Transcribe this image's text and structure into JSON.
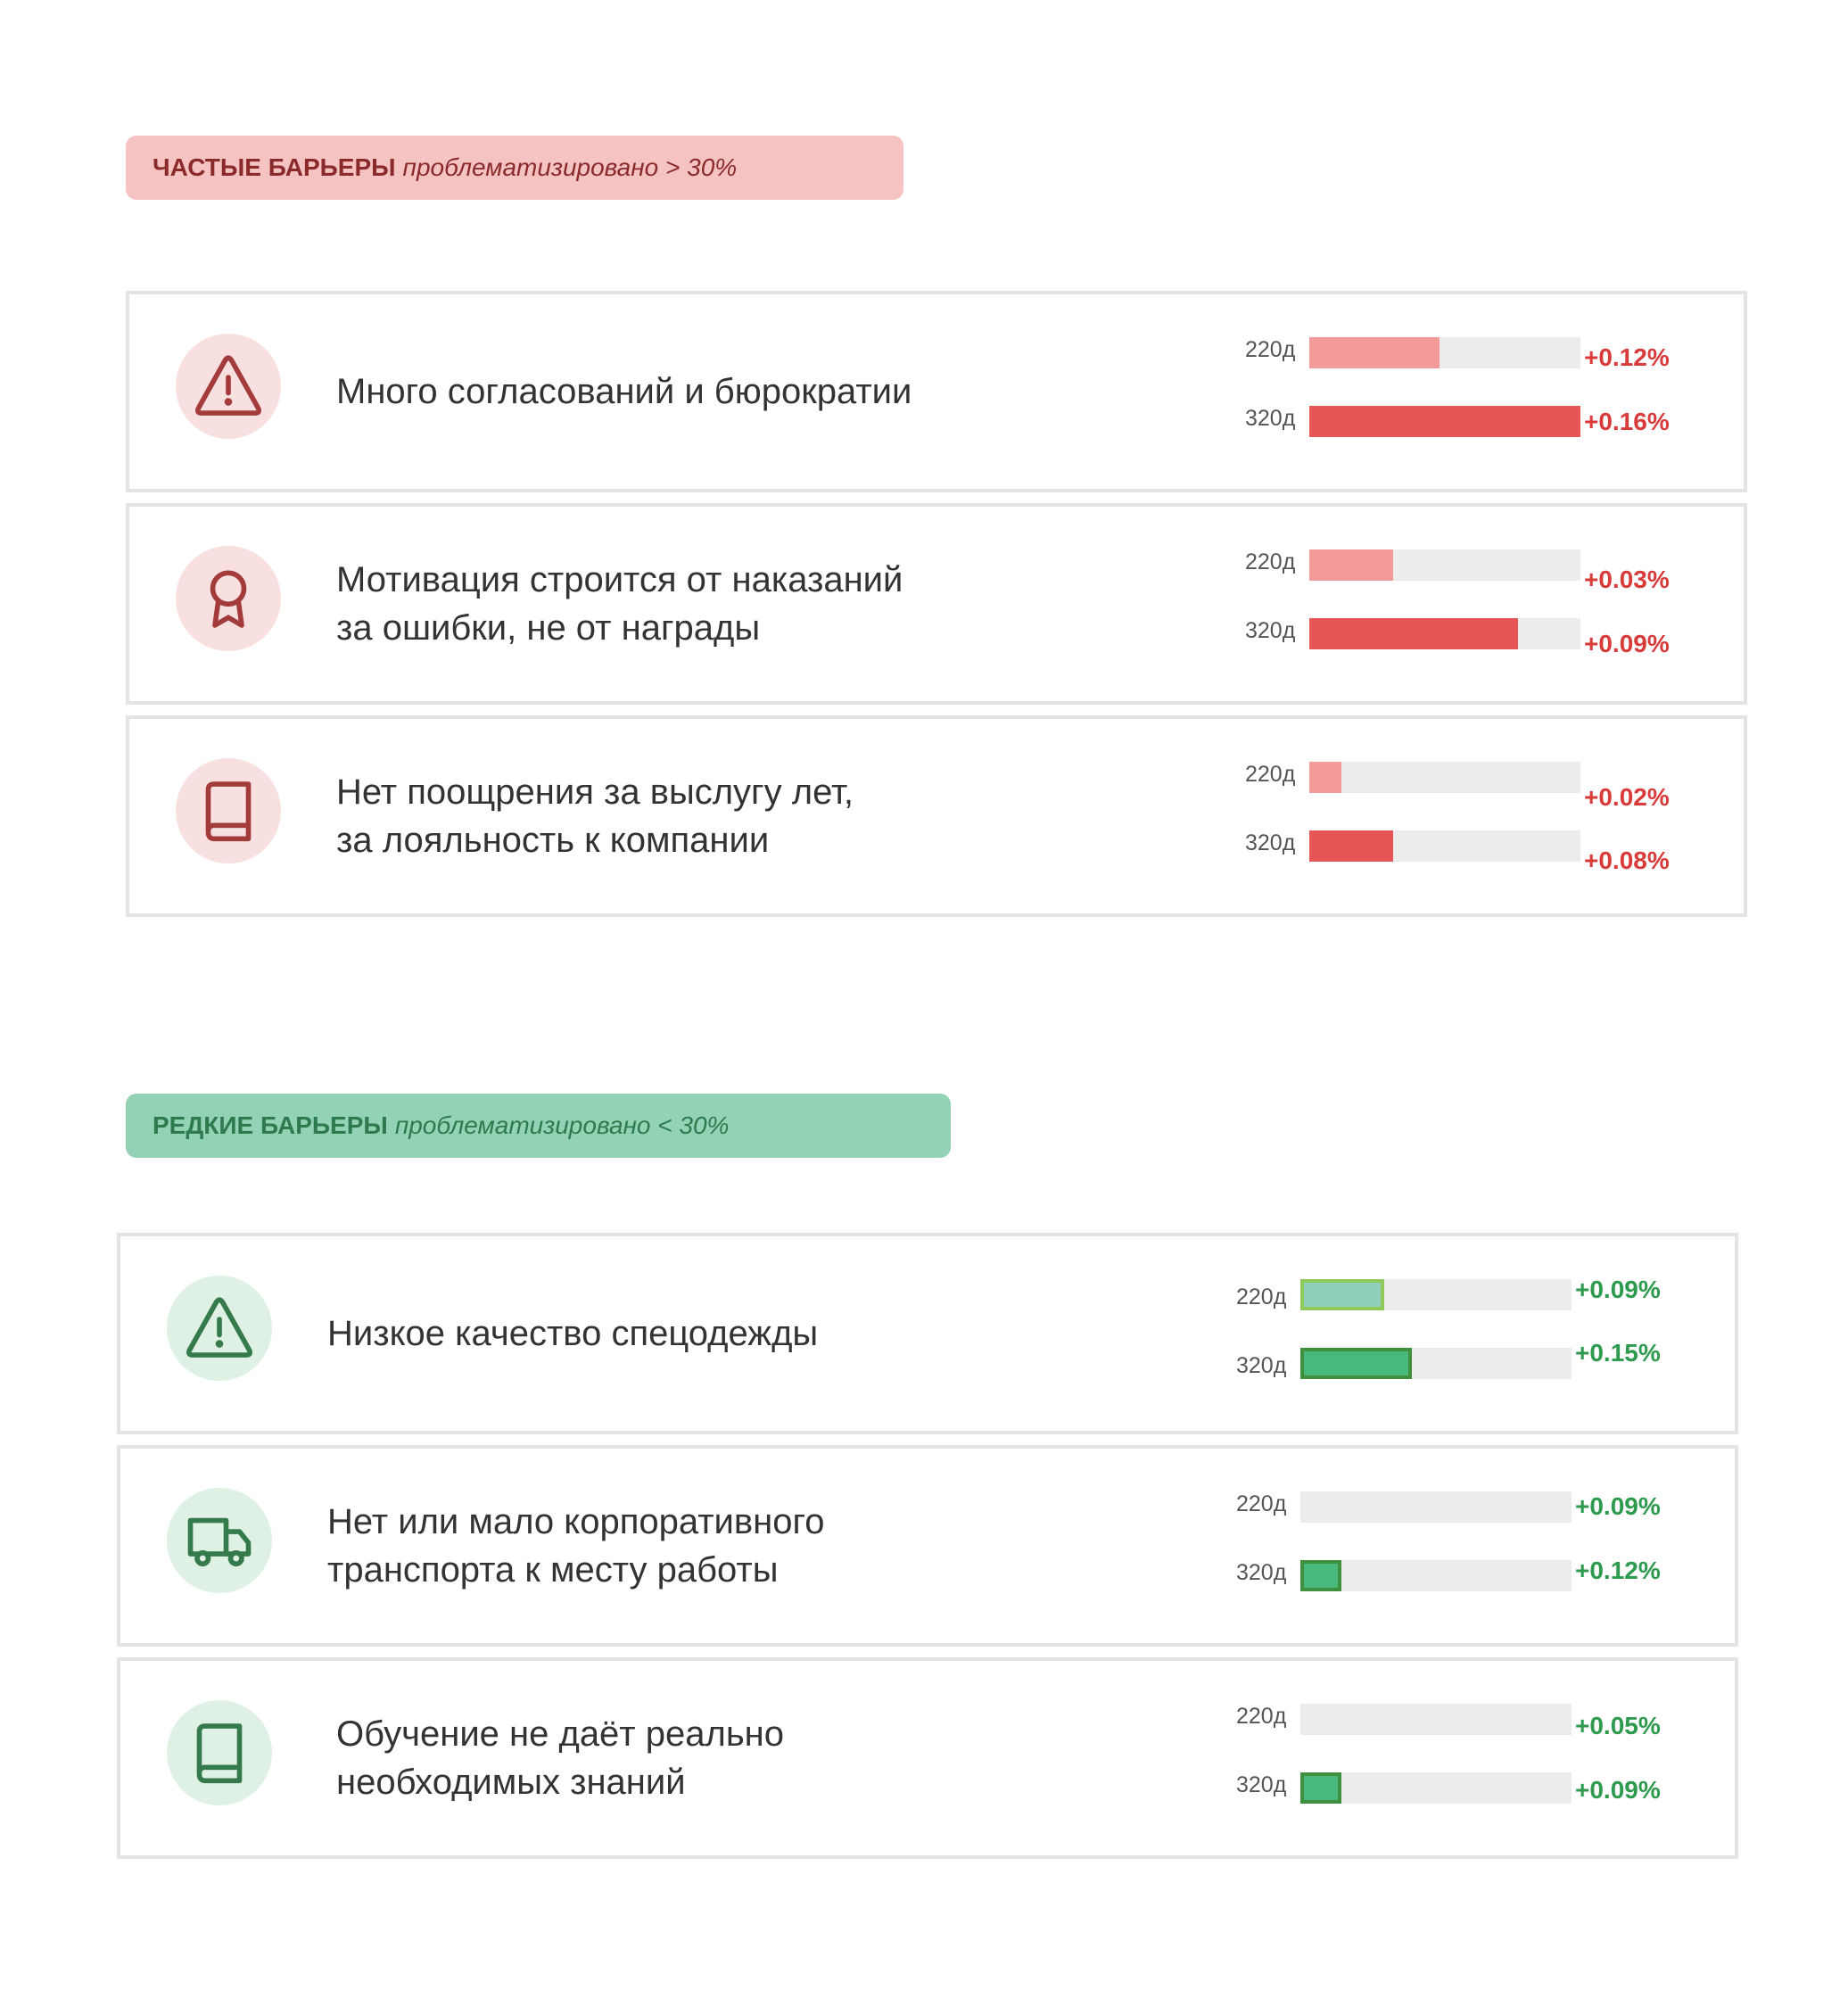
{
  "sections": [
    {
      "title": "ЧАСТЫЕ БАРЬЕРЫ",
      "note": "проблематизировано > 30%",
      "theme": "red",
      "color_label_bg": "#f6c3c3",
      "color_text": "#8b2a2a",
      "color_fill_220": "#f39a9a",
      "color_fill_320": "#e55656",
      "color_value": "#d93b3b",
      "items": [
        {
          "icon": "warning-triangle-icon",
          "lines": [
            "Много согласований и бюрократии",
            ""
          ],
          "bars": [
            {
              "label": "220д",
              "fill": 0.48,
              "value": "+0.12%"
            },
            {
              "label": "320д",
              "fill": 1.0,
              "value": "+0.16%"
            }
          ]
        },
        {
          "icon": "award-ribbon-icon",
          "lines": [
            "Мотивация строится от наказаний",
            "за ошибки, не от награды"
          ],
          "bars": [
            {
              "label": "220д",
              "fill": 0.31,
              "value": "+0.03%"
            },
            {
              "label": "320д",
              "fill": 0.77,
              "value": "+0.09%"
            }
          ]
        },
        {
          "icon": "book-icon",
          "lines": [
            "Нет поощрения за выслугу лет,",
            "за лояльность к компании"
          ],
          "bars": [
            {
              "label": "220д",
              "fill": 0.12,
              "value": "+0.02%"
            },
            {
              "label": "320д",
              "fill": 0.31,
              "value": "+0.08%"
            }
          ]
        }
      ]
    },
    {
      "title": "РЕДКИЕ БАРЬЕРЫ",
      "note": "проблематизировано < 30%",
      "theme": "green",
      "color_label_bg": "#93d2b4",
      "color_text": "#2d7a4e",
      "color_fill_220": "#8fd0bd",
      "color_fill_320": "#48b97b",
      "color_value": "#2d9a4e",
      "items": [
        {
          "icon": "warning-triangle-icon",
          "lines": [
            "Низкое качество спецодежды",
            ""
          ],
          "bars": [
            {
              "label": "220д",
              "fill": 0.31,
              "value": "+0.09%"
            },
            {
              "label": "320д",
              "fill": 0.41,
              "value": "+0.15%"
            }
          ]
        },
        {
          "icon": "truck-icon",
          "lines": [
            "Нет или мало корпоративного",
            "транспорта к месту работы"
          ],
          "bars": [
            {
              "label": "220д",
              "fill": 0.0,
              "value": "+0.09%"
            },
            {
              "label": "320д",
              "fill": 0.15,
              "value": "+0.12%"
            }
          ]
        },
        {
          "icon": "book-icon",
          "lines": [
            "Обучение не даёт реально",
            "необходимых знаний"
          ],
          "bars": [
            {
              "label": "220д",
              "fill": 0.0,
              "value": "+0.05%"
            },
            {
              "label": "320д",
              "fill": 0.15,
              "value": "+0.09%"
            }
          ]
        }
      ]
    }
  ],
  "chart_data": {
    "type": "bar",
    "orientation": "horizontal",
    "series_labels": [
      "220д",
      "320д"
    ],
    "groups": [
      {
        "section": "ЧАСТЫЕ БАРЬЕРЫ",
        "category": "Много согласований и бюрократии",
        "values": [
          "+0.12%",
          "+0.16%"
        ]
      },
      {
        "section": "ЧАСТЫЕ БАРЬЕРЫ",
        "category": "Мотивация строится от наказаний за ошибки, не от награды",
        "values": [
          "+0.03%",
          "+0.09%"
        ]
      },
      {
        "section": "ЧАСТЫЕ БАРЬЕРЫ",
        "category": "Нет поощрения за выслугу лет, за лояльность к компании",
        "values": [
          "+0.02%",
          "+0.08%"
        ]
      },
      {
        "section": "РЕДКИЕ БАРЬЕРЫ",
        "category": "Низкое качество спецодежды",
        "values": [
          "+0.09%",
          "+0.15%"
        ]
      },
      {
        "section": "РЕДКИЕ БАРЬЕРЫ",
        "category": "Нет или мало корпоративного транспорта к месту работы",
        "values": [
          "+0.09%",
          "+0.12%"
        ]
      },
      {
        "section": "РЕДКИЕ БАРЬЕРЫ",
        "category": "Обучение не даёт реально необходимых знаний",
        "values": [
          "+0.05%",
          "+0.09%"
        ]
      }
    ]
  }
}
